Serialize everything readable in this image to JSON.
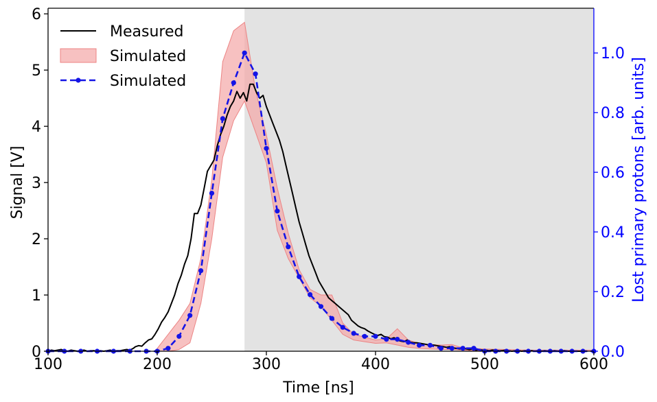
{
  "chart_data": {
    "type": "line",
    "xlabel": "Time [ns]",
    "ylabel": "Signal [V]",
    "y2label": "Lost primary protons [arb. units]",
    "xlim": [
      100,
      600
    ],
    "ylim": [
      0,
      6.1
    ],
    "y2lim": [
      0,
      1.15
    ],
    "xticks": [
      "100",
      "200",
      "300",
      "400",
      "500",
      "600"
    ],
    "yticks": [
      "0",
      "1",
      "2",
      "3",
      "4",
      "5",
      "6"
    ],
    "y2ticks": [
      "0.0",
      "0.2",
      "0.4",
      "0.6",
      "0.8",
      "1.0"
    ],
    "shaded_region": {
      "x_from": 280,
      "x_to": 600,
      "color": "#e3e3e3"
    },
    "legend": {
      "placement": "top-left",
      "entries": [
        "Measured",
        "Simulated",
        "Simulated"
      ]
    },
    "colors": {
      "measured": "#000000",
      "band": "#f4a6a6",
      "band_edge": "#ec8484",
      "simulated": "#1414e6",
      "right_axis": "#0000ff"
    },
    "measured": {
      "name": "Measured",
      "x": [
        100,
        103,
        106,
        109,
        112,
        115,
        118,
        121,
        124,
        127,
        130,
        133,
        136,
        139,
        142,
        145,
        148,
        151,
        154,
        157,
        160,
        163,
        166,
        169,
        172,
        175,
        178,
        180,
        183,
        186,
        189,
        192,
        195,
        198,
        201,
        204,
        207,
        210,
        213,
        216,
        219,
        222,
        225,
        228,
        231,
        234,
        237,
        240,
        243,
        246,
        249,
        252,
        255,
        258,
        261,
        264,
        267,
        270,
        273,
        276,
        279,
        282,
        285,
        288,
        291,
        294,
        297,
        300,
        303,
        306,
        309,
        312,
        315,
        318,
        321,
        324,
        327,
        330,
        333,
        336,
        339,
        342,
        345,
        348,
        351,
        354,
        357,
        360,
        363,
        366,
        369,
        372,
        375,
        378,
        381,
        384,
        387,
        390,
        393,
        396,
        399,
        402,
        405,
        408,
        411,
        414,
        417,
        420,
        423,
        426,
        429,
        432,
        435,
        438,
        441,
        444,
        447,
        450,
        453,
        456,
        459,
        462,
        465,
        468,
        471,
        474,
        477,
        480,
        483,
        486,
        489,
        492,
        495,
        498,
        501,
        504,
        507,
        510,
        513,
        516,
        519,
        522,
        525,
        528,
        531,
        534,
        537,
        540,
        543,
        546,
        549,
        552,
        555,
        558,
        561,
        564,
        567,
        570,
        573,
        576,
        579,
        582,
        585,
        588,
        591,
        594
      ],
      "y": [
        0,
        0.02,
        0.01,
        0.02,
        0.03,
        0.01,
        0,
        0.02,
        0.01,
        0,
        0.01,
        0.02,
        0,
        0.01,
        0.01,
        0,
        0.01,
        0,
        0.01,
        0.02,
        0,
        0.01,
        0.01,
        0.02,
        0.03,
        0.02,
        0.05,
        0.08,
        0.1,
        0.09,
        0.15,
        0.2,
        0.22,
        0.3,
        0.4,
        0.52,
        0.6,
        0.7,
        0.85,
        1.0,
        1.2,
        1.35,
        1.55,
        1.7,
        2.0,
        2.45,
        2.45,
        2.6,
        2.9,
        3.2,
        3.3,
        3.4,
        3.65,
        3.85,
        4.0,
        4.2,
        4.35,
        4.45,
        4.62,
        4.5,
        4.6,
        4.45,
        4.75,
        4.75,
        4.6,
        4.5,
        4.55,
        4.35,
        4.2,
        4.05,
        3.9,
        3.75,
        3.55,
        3.3,
        3.05,
        2.8,
        2.55,
        2.3,
        2.1,
        1.9,
        1.7,
        1.55,
        1.4,
        1.25,
        1.15,
        1.05,
        0.95,
        0.9,
        0.85,
        0.8,
        0.75,
        0.7,
        0.65,
        0.55,
        0.5,
        0.45,
        0.42,
        0.4,
        0.36,
        0.33,
        0.3,
        0.28,
        0.3,
        0.26,
        0.25,
        0.22,
        0.24,
        0.2,
        0.18,
        0.17,
        0.2,
        0.16,
        0.15,
        0.15,
        0.14,
        0.13,
        0.12,
        0.1,
        0.11,
        0.1,
        0.09,
        0.08,
        0.07,
        0.08,
        0.06,
        0.05,
        0.04,
        0.05,
        0.04,
        0.03,
        0.04,
        0.02,
        0.03,
        0.02,
        0.02,
        0.01,
        0.02,
        0.02,
        0.01,
        0.01,
        0.02,
        0.01,
        0,
        0.01,
        0.01,
        0,
        0.01,
        0,
        0.01,
        0,
        0.01,
        0,
        0.01,
        0,
        0,
        0.01,
        0,
        0,
        0.01,
        0,
        0,
        0,
        0,
        0,
        0,
        0
      ]
    },
    "simulated_band": {
      "name": "Simulated",
      "x": [
        200,
        210,
        220,
        230,
        240,
        250,
        260,
        270,
        280,
        290,
        300,
        310,
        320,
        330,
        340,
        350,
        360,
        370,
        380,
        390,
        400,
        410,
        420,
        430,
        440,
        450,
        460,
        470,
        480,
        490,
        500,
        520,
        540,
        560,
        580,
        600
      ],
      "lower": [
        0,
        0,
        0.03,
        0.15,
        0.85,
        2.0,
        3.45,
        4.1,
        4.45,
        3.9,
        3.35,
        2.15,
        1.65,
        1.3,
        0.95,
        0.8,
        0.55,
        0.3,
        0.2,
        0.17,
        0.14,
        0.15,
        0.11,
        0.07,
        0.05,
        0.04,
        0.03,
        0.03,
        0.02,
        0.01,
        0.01,
        0,
        0,
        0,
        0,
        0
      ],
      "upper": [
        0.05,
        0.3,
        0.55,
        0.85,
        1.65,
        3.05,
        5.15,
        5.7,
        5.85,
        4.65,
        3.85,
        2.9,
        2.1,
        1.45,
        1.1,
        1.0,
        1.0,
        0.5,
        0.3,
        0.25,
        0.2,
        0.22,
        0.4,
        0.2,
        0.14,
        0.12,
        0.11,
        0.12,
        0.06,
        0.05,
        0.04,
        0.03,
        0.02,
        0.02,
        0.02,
        0.02
      ]
    },
    "simulated_points": {
      "name": "Simulated",
      "x": [
        100,
        115,
        130,
        145,
        160,
        175,
        190,
        200,
        210,
        220,
        230,
        240,
        250,
        260,
        270,
        280,
        290,
        300,
        310,
        320,
        330,
        340,
        350,
        360,
        370,
        380,
        390,
        400,
        410,
        420,
        430,
        440,
        450,
        460,
        470,
        480,
        490,
        500,
        510,
        520,
        530,
        540,
        550,
        560,
        570,
        580,
        590,
        600
      ],
      "y": [
        0,
        0,
        0,
        0,
        0,
        0,
        0,
        0,
        0.01,
        0.05,
        0.12,
        0.27,
        0.53,
        0.78,
        0.9,
        1.0,
        0.93,
        0.68,
        0.47,
        0.35,
        0.25,
        0.19,
        0.15,
        0.11,
        0.08,
        0.06,
        0.05,
        0.05,
        0.04,
        0.04,
        0.03,
        0.02,
        0.02,
        0.01,
        0.01,
        0.01,
        0.01,
        0,
        0,
        0,
        0,
        0,
        0,
        0,
        0,
        0,
        0,
        0
      ]
    }
  }
}
